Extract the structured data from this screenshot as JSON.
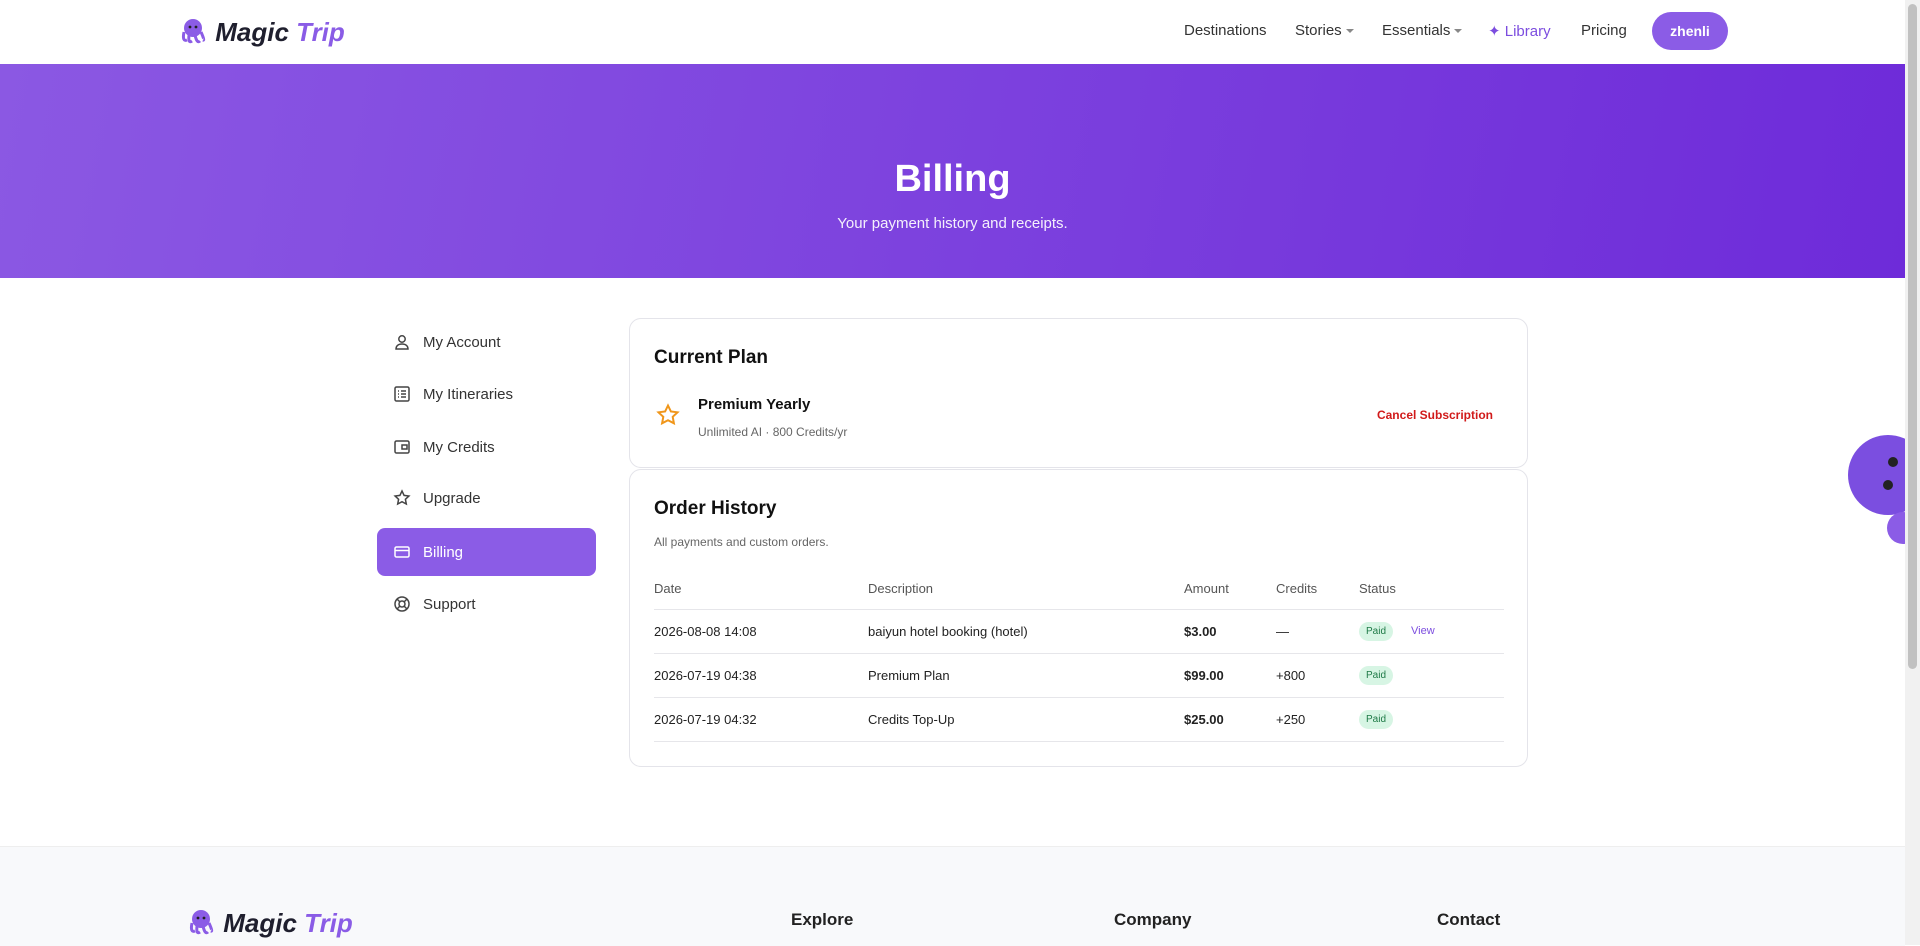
{
  "nav": {
    "logo": {
      "first": "Magic",
      "second": "Trip"
    },
    "links": [
      "Destinations",
      "Stories",
      "Essentials",
      "Library",
      "Pricing"
    ],
    "user": "zhenli"
  },
  "hero": {
    "title": "Billing",
    "subtitle": "Your payment history and receipts."
  },
  "sidebar": [
    "My Account",
    "My Itineraries",
    "My Credits",
    "Upgrade",
    "Billing",
    "Support"
  ],
  "current_plan": {
    "title": "Current Plan",
    "plan_name": "Premium Yearly",
    "plan_details": "Unlimited AI · 800 Credits/yr",
    "cancel": "Cancel Subscription"
  },
  "order_history": {
    "title": "Order History",
    "subtitle": "All payments and custom orders.",
    "columns": [
      "Date",
      "Description",
      "Amount",
      "Credits",
      "Status"
    ],
    "rows": [
      [
        "2026-08-08 14:08",
        "baiyun hotel booking (hotel)",
        "$3.00",
        "—",
        "Paid"
      ],
      [
        "2026-07-19 04:38",
        "Premium Plan",
        "$99.00",
        "+800",
        "Paid"
      ],
      [
        "2026-07-19 04:32",
        "Credits Top-Up",
        "$25.00",
        "+250",
        "Paid"
      ]
    ],
    "view_link": "View"
  },
  "footer": {
    "logo": {
      "first": "Magic",
      "second": "Trip"
    },
    "headings": [
      "Explore",
      "Company",
      "Contact"
    ]
  }
}
